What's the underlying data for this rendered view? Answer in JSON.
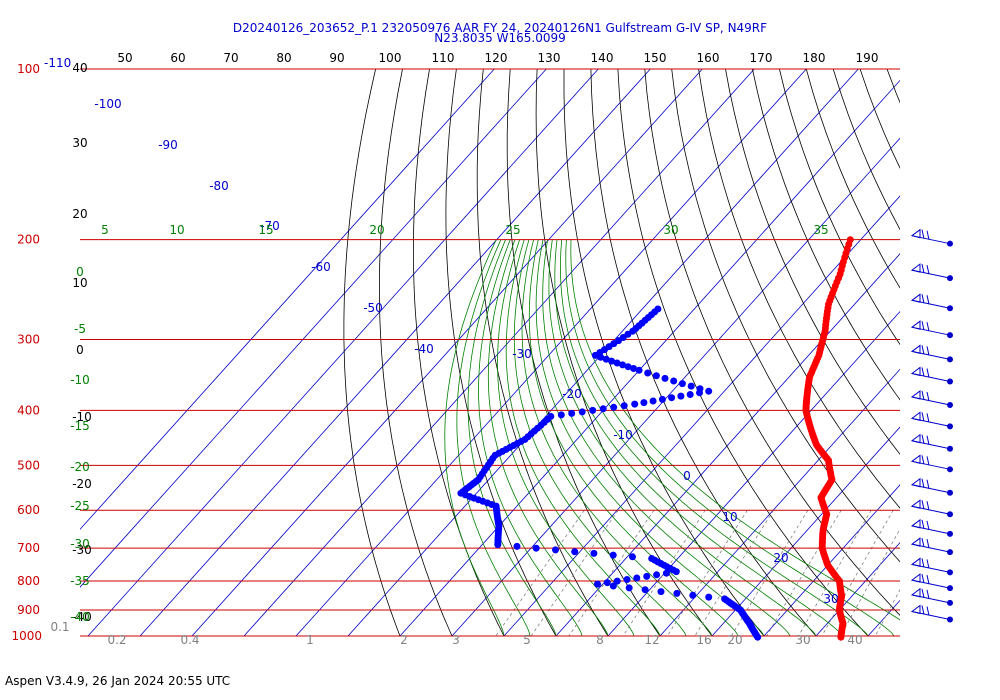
{
  "title_line1": "D20240126_203652_P.1 232050976 AAR FY 24, 20240126N1 Gulfstream G-IV SP, N49RF",
  "title_line2": "N23.8035 W165.0099",
  "footer": "Aspen V3.4.9, 26 Jan 2024  20:55 UTC",
  "colors": {
    "temperature": "#ff0000",
    "dewpoint": "#0000ff",
    "isobar": "#cc0000",
    "isotherm": "#0000cc",
    "dry_adiabat": "#000000",
    "moist_adiabat": "#008000",
    "mixing_ratio": "#808080"
  },
  "chart_data": {
    "type": "skew-t",
    "pressure_labels": [
      "100",
      "200",
      "300",
      "400",
      "500",
      "600",
      "700",
      "800",
      "900",
      "1000"
    ],
    "pressure_top_label": "-110",
    "top_tick_labels": [
      "50",
      "60",
      "70",
      "80",
      "90",
      "100",
      "110",
      "120",
      "130",
      "140",
      "150",
      "160",
      "170",
      "180",
      "190"
    ],
    "left_scale_labels": [
      "40",
      "30",
      "20",
      "10",
      "0",
      "-10",
      "-20",
      "-30",
      "-40"
    ],
    "isotherm_labels": [
      "-100",
      "-90",
      "-80",
      "-70",
      "-60",
      "-50",
      "-40",
      "-30",
      "-20",
      "-10",
      "0",
      "10",
      "20",
      "30"
    ],
    "moist_adiabat_labels": [
      "5",
      "10",
      "15",
      "20",
      "25",
      "30",
      "35"
    ],
    "left_green_labels": [
      "0",
      "-5",
      "-10",
      "-15",
      "-20",
      "-25",
      "-30",
      "-35",
      "-40"
    ],
    "mixing_ratio_labels": [
      "0.1",
      "0.2",
      "0.4",
      "1",
      "2",
      "3",
      "5",
      "8",
      "12",
      "16",
      "20",
      "30",
      "40"
    ],
    "temperature_profile": [
      {
        "p": 200,
        "t": -42
      },
      {
        "p": 230,
        "t": -38
      },
      {
        "p": 260,
        "t": -35
      },
      {
        "p": 290,
        "t": -31
      },
      {
        "p": 320,
        "t": -28
      },
      {
        "p": 350,
        "t": -26
      },
      {
        "p": 380,
        "t": -23
      },
      {
        "p": 400,
        "t": -21
      },
      {
        "p": 430,
        "t": -17
      },
      {
        "p": 460,
        "t": -13
      },
      {
        "p": 490,
        "t": -8
      },
      {
        "p": 530,
        "t": -4
      },
      {
        "p": 570,
        "t": -3
      },
      {
        "p": 610,
        "t": 1
      },
      {
        "p": 650,
        "t": 3
      },
      {
        "p": 700,
        "t": 6
      },
      {
        "p": 750,
        "t": 10
      },
      {
        "p": 800,
        "t": 15
      },
      {
        "p": 850,
        "t": 18
      },
      {
        "p": 900,
        "t": 20
      },
      {
        "p": 950,
        "t": 23
      },
      {
        "p": 1005,
        "t": 25
      }
    ],
    "dewpoint_profile": [
      {
        "p": 265,
        "t": -67
      },
      {
        "p": 290,
        "t": -68
      },
      {
        "p": 320,
        "t": -71
      },
      {
        "p": 340,
        "t": -60
      },
      {
        "p": 370,
        "t": -43
      },
      {
        "p": 390,
        "t": -55
      },
      {
        "p": 410,
        "t": -69
      },
      {
        "p": 450,
        "t": -70
      },
      {
        "p": 480,
        "t": -73
      },
      {
        "p": 530,
        "t": -72
      },
      {
        "p": 560,
        "t": -73
      },
      {
        "p": 590,
        "t": -64
      },
      {
        "p": 640,
        "t": -60
      },
      {
        "p": 690,
        "t": -57
      },
      {
        "p": 730,
        "t": -25
      },
      {
        "p": 770,
        "t": -18
      },
      {
        "p": 810,
        "t": -31
      },
      {
        "p": 860,
        "t": -4
      },
      {
        "p": 900,
        "t": 1
      },
      {
        "p": 950,
        "t": 5
      },
      {
        "p": 1005,
        "t": 9
      }
    ],
    "wind_pressures": [
      200,
      230,
      260,
      290,
      320,
      350,
      385,
      420,
      460,
      500,
      550,
      600,
      650,
      700,
      760,
      810,
      860,
      920
    ]
  }
}
